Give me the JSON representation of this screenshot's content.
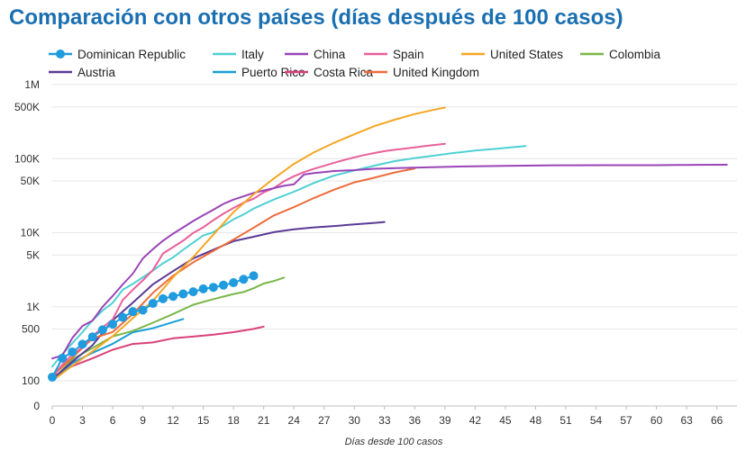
{
  "chart_data": {
    "type": "line",
    "title": "Comparación con otros países (días después de 100 casos)",
    "xlabel": "Días desde 100 casos",
    "ylabel": "",
    "y_scale": "log",
    "grid": "horizontal",
    "legend_position": "top",
    "xlim": [
      0,
      68
    ],
    "x_ticks": [
      0,
      3,
      6,
      9,
      12,
      15,
      18,
      21,
      24,
      27,
      30,
      33,
      36,
      39,
      42,
      45,
      48,
      51,
      54,
      57,
      60,
      63,
      66
    ],
    "y_ticks": [
      {
        "value": 0,
        "label": "0"
      },
      {
        "value": 100,
        "label": "100"
      },
      {
        "value": 500,
        "label": "500"
      },
      {
        "value": 1000,
        "label": "1K"
      },
      {
        "value": 5000,
        "label": "5K"
      },
      {
        "value": 10000,
        "label": "10K"
      },
      {
        "value": 50000,
        "label": "50K"
      },
      {
        "value": 100000,
        "label": "100K"
      },
      {
        "value": 500000,
        "label": "500K"
      },
      {
        "value": 1000000,
        "label": "1M"
      }
    ],
    "series": [
      {
        "name": "Dominican Republic",
        "color": "#1f9bde",
        "markers": true,
        "x": [
          0,
          1,
          2,
          3,
          4,
          5,
          6,
          7,
          8,
          9,
          10,
          11,
          12,
          13,
          14,
          15,
          16,
          17,
          18,
          19,
          20
        ],
        "y": [
          112,
          202,
          245,
          312,
          392,
          488,
          581,
          719,
          859,
          901,
          1109,
          1284,
          1380,
          1488,
          1592,
          1745,
          1828,
          1956,
          2111,
          2349,
          2620
        ]
      },
      {
        "name": "Italy",
        "color": "#4fd0d4",
        "markers": false,
        "x": [
          0,
          1,
          2,
          3,
          4,
          5,
          6,
          7,
          8,
          9,
          10,
          11,
          12,
          13,
          14,
          15,
          16,
          17,
          18,
          19,
          20,
          22,
          24,
          26,
          28,
          30,
          32,
          34,
          36,
          38,
          40,
          42,
          44,
          46,
          47
        ],
        "y": [
          155,
          229,
          322,
          453,
          655,
          888,
          1128,
          1694,
          2036,
          2502,
          3089,
          3858,
          4636,
          5883,
          7375,
          9172,
          10149,
          12462,
          15113,
          17660,
          21157,
          27980,
          35713,
          47021,
          59138,
          69176,
          80539,
          92472,
          101739,
          110574,
          119827,
          128948,
          135586,
          143626,
          147577
        ]
      },
      {
        "name": "China",
        "color": "#9a44b8",
        "markers": false,
        "x": [
          0,
          1,
          2,
          3,
          4,
          5,
          6,
          7,
          8,
          9,
          10,
          11,
          12,
          13,
          14,
          15,
          16,
          17,
          18,
          19,
          20,
          21,
          22,
          23,
          24,
          25,
          26,
          28,
          30,
          32,
          35,
          40,
          45,
          50,
          55,
          60,
          62,
          64,
          67
        ],
        "y": [
          200,
          220,
          380,
          550,
          650,
          1000,
          1400,
          2000,
          2800,
          4500,
          6000,
          7800,
          9700,
          11800,
          14400,
          17200,
          20400,
          24500,
          28000,
          31000,
          34500,
          37200,
          40000,
          43000,
          45000,
          61000,
          64000,
          68000,
          70000,
          73000,
          75000,
          78000,
          80000,
          81500,
          81600,
          81700,
          82000,
          82500,
          82700
        ]
      },
      {
        "name": "Spain",
        "color": "#e8609a",
        "markers": false,
        "x": [
          0,
          1,
          2,
          3,
          4,
          5,
          6,
          7,
          8,
          9,
          10,
          11,
          12,
          13,
          14,
          15,
          16,
          17,
          18,
          19,
          20,
          21,
          22,
          23,
          24,
          25,
          26,
          27,
          28,
          29,
          30,
          31,
          32,
          33,
          34,
          35,
          36,
          37,
          38,
          39
        ],
        "y": [
          114,
          165,
          228,
          282,
          401,
          525,
          674,
          1231,
          1695,
          2277,
          3146,
          5232,
          6391,
          7798,
          9942,
          11826,
          14769,
          18077,
          21571,
          25496,
          28768,
          35136,
          39885,
          49515,
          57786,
          65719,
          73235,
          80110,
          87956,
          95923,
          104118,
          112065,
          119199,
          126168,
          131646,
          136675,
          141942,
          148220,
          153222,
          158273
        ]
      },
      {
        "name": "United States",
        "color": "#f5a623",
        "markers": false,
        "x": [
          0,
          2,
          4,
          6,
          8,
          10,
          12,
          14,
          16,
          18,
          20,
          22,
          24,
          26,
          28,
          30,
          32,
          34,
          36,
          38,
          39
        ],
        "y": [
          100,
          160,
          250,
          400,
          700,
          1200,
          2500,
          4700,
          9400,
          19000,
          33000,
          54000,
          85000,
          122000,
          164000,
          213000,
          275000,
          336000,
          400000,
          460000,
          490000
        ]
      },
      {
        "name": "Colombia",
        "color": "#7ab648",
        "markers": false,
        "x": [
          0,
          2,
          4,
          6,
          8,
          10,
          12,
          14,
          16,
          18,
          19,
          20,
          21,
          22,
          23
        ],
        "y": [
          102,
          196,
          277,
          398,
          470,
          608,
          798,
          1065,
          1267,
          1485,
          1579,
          1780,
          2054,
          2223,
          2473
        ]
      },
      {
        "name": "Austria",
        "color": "#5b3a96",
        "markers": false,
        "x": [
          0,
          2,
          4,
          6,
          8,
          10,
          12,
          14,
          16,
          18,
          20,
          22,
          24,
          26,
          28,
          30,
          32,
          33
        ],
        "y": [
          104,
          182,
          302,
          655,
          1132,
          2013,
          3024,
          4486,
          5888,
          7697,
          8813,
          10180,
          11129,
          11781,
          12297,
          12942,
          13555,
          13945
        ]
      },
      {
        "name": "Puerto Rico",
        "color": "#1a9fd6",
        "markers": false,
        "x": [
          0,
          2,
          4,
          6,
          8,
          10,
          12,
          13
        ],
        "y": [
          100,
          174,
          239,
          316,
          452,
          513,
          620,
          683
        ]
      },
      {
        "name": "Costa Rica",
        "color": "#d9407a",
        "markers": false,
        "x": [
          0,
          2,
          4,
          6,
          8,
          10,
          12,
          14,
          16,
          18,
          20,
          21
        ],
        "y": [
          113,
          158,
          201,
          263,
          314,
          330,
          375,
          395,
          419,
          454,
          502,
          539
        ]
      },
      {
        "name": "United Kingdom",
        "color": "#ee6c3c",
        "markers": false,
        "x": [
          0,
          2,
          4,
          6,
          8,
          10,
          12,
          14,
          16,
          18,
          20,
          22,
          24,
          26,
          28,
          30,
          32,
          34,
          36
        ],
        "y": [
          116,
          207,
          373,
          456,
          798,
          1543,
          2626,
          3983,
          5683,
          8077,
          11658,
          17089,
          22141,
          29474,
          38168,
          47806,
          55242,
          65077,
          73758
        ]
      }
    ]
  }
}
